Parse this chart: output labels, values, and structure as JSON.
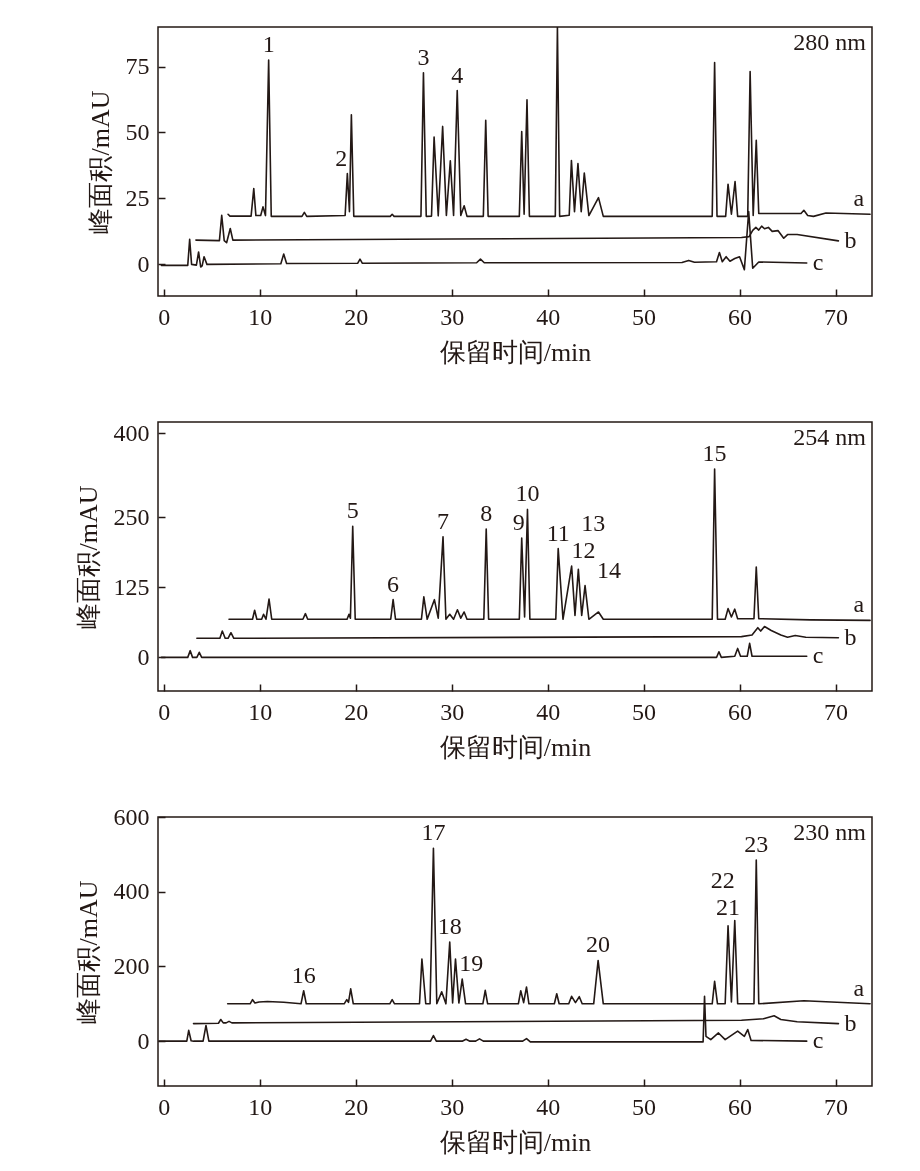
{
  "chart_data": [
    {
      "type": "line",
      "xlabel": "保留时间/min",
      "ylabel": "峰面积/mAU",
      "xlim": [
        -0.6,
        73.8
      ],
      "ylim": [
        -12,
        90
      ],
      "xticks": [
        0,
        10,
        20,
        30,
        40,
        50,
        60,
        70
      ],
      "yticks": [
        0,
        25,
        50,
        75
      ],
      "series": [
        {
          "name": "a",
          "color": "#231815",
          "x": [
            6.7,
            6.9,
            9.1,
            9.38,
            9.6,
            10.1,
            10.34,
            10.6,
            10.93,
            11.2,
            14.4,
            14.65,
            14.9,
            18.9,
            19.13,
            19.35,
            19.55,
            19.8,
            23.6,
            23.8,
            24.0,
            26.8,
            27.06,
            27.35,
            27.9,
            28.17,
            28.6,
            29.06,
            29.45,
            29.86,
            30.2,
            30.58,
            30.95,
            31.3,
            31.6,
            33.3,
            33.55,
            33.8,
            37.05,
            37.3,
            37.55,
            37.85,
            38.1,
            40.8,
            41.02,
            41.25,
            42.25,
            42.48,
            42.8,
            43.16,
            43.5,
            43.82,
            44.3,
            45.3,
            45.8,
            57.15,
            57.4,
            57.65,
            58.55,
            58.8,
            59.15,
            59.53,
            59.8,
            60.85,
            61.1,
            61.42,
            61.74,
            62.0,
            64.0,
            66.4,
            66.7,
            67.1,
            67.7,
            69.0,
            73.6
          ],
          "values": [
            19,
            18.3,
            18.3,
            28.7,
            18.5,
            18.5,
            21.8,
            18.5,
            77.5,
            18.2,
            18.2,
            19.7,
            18.2,
            18.5,
            34.4,
            20,
            56.7,
            18.2,
            18.2,
            19,
            18.2,
            18.2,
            72.6,
            18.2,
            18.3,
            48.3,
            18.4,
            52.3,
            18.5,
            39.3,
            18.5,
            65.9,
            18.5,
            22.2,
            18.2,
            18.2,
            54.6,
            18.2,
            18.2,
            50.4,
            19,
            62.4,
            18.2,
            18.2,
            90,
            18.2,
            18.6,
            39.4,
            20,
            38.2,
            20,
            34.6,
            18.5,
            25.3,
            18.2,
            18.2,
            76.5,
            18.2,
            18.2,
            30.4,
            19,
            31.4,
            18.2,
            18.2,
            73.1,
            18.5,
            47,
            19.3,
            19.3,
            19.3,
            20.5,
            18.5,
            18.2,
            19.5,
            19
          ]
        },
        {
          "name": "b",
          "color": "#231815",
          "x": [
            3.35,
            5.8,
            6.04,
            6.3,
            6.55,
            6.93,
            7.2,
            30,
            60.2,
            61.0,
            61.37,
            61.7,
            62.0,
            62.3,
            62.6,
            63.0,
            63.4,
            64.0,
            64.6,
            65.0,
            66.0,
            70.3
          ],
          "values": [
            9.2,
            9.0,
            18.6,
            9,
            8.2,
            13.6,
            9.2,
            9.6,
            10.2,
            10.5,
            12.9,
            14,
            13,
            14.5,
            13.5,
            14,
            12.5,
            12.8,
            9.9,
            11.3,
            11.3,
            8.9
          ]
        },
        {
          "name": "c",
          "color": "#231815",
          "x": [
            -0.24,
            2.5,
            2.7,
            2.9,
            3.4,
            3.63,
            3.85,
            4.0,
            4.2,
            4.5,
            12.2,
            12.5,
            12.8,
            20.2,
            20.45,
            20.7,
            32.6,
            33.0,
            33.4,
            54.0,
            54.7,
            55.3,
            57.6,
            57.9,
            58.2,
            58.6,
            59.0,
            59.5,
            60.0,
            60.5,
            60.95,
            61.37,
            62,
            67.0
          ],
          "values": [
            -0.4,
            -0.4,
            9.5,
            0,
            -0.3,
            4.7,
            -1,
            -0.6,
            2.9,
            0,
            0.2,
            3.9,
            0.3,
            0.4,
            2.0,
            0.4,
            0.6,
            2,
            0.6,
            0.7,
            1.5,
            0.8,
            1,
            4.5,
            1,
            2.9,
            1.2,
            2.2,
            2.9,
            -2,
            20,
            -1.5,
            0.9,
            0.5
          ]
        }
      ],
      "annotations": [
        "280 nm",
        {
          "text": "1",
          "x": 10.93,
          "y": 77.5
        },
        {
          "text": "2",
          "x": 19.13,
          "y": 34.4
        },
        {
          "text": "3",
          "x": 27.06,
          "y": 72.6
        },
        {
          "text": "4",
          "x": 30.58,
          "y": 65.9
        }
      ]
    },
    {
      "type": "line",
      "xlabel": "保留时间/min",
      "ylabel": "峰面积/mAU",
      "xlim": [
        -0.6,
        73.8
      ],
      "ylim": [
        -60,
        420
      ],
      "xticks": [
        0,
        10,
        20,
        30,
        40,
        50,
        60,
        70
      ],
      "yticks": [
        0,
        125,
        250,
        400
      ],
      "series": [
        {
          "name": "a",
          "color": "#231815",
          "x": [
            6.8,
            9.25,
            9.47,
            9.7,
            10.2,
            10.4,
            10.65,
            10.97,
            11.25,
            14.5,
            14.76,
            15.0,
            19.1,
            19.3,
            19.45,
            19.69,
            19.95,
            23.65,
            23.9,
            24.15,
            26.85,
            27.1,
            27.45,
            28.2,
            28.6,
            29.1,
            29.4,
            29.8,
            30.2,
            30.6,
            30.95,
            31.3,
            31.6,
            33.35,
            33.6,
            33.85,
            37.05,
            37.3,
            37.6,
            37.9,
            38.15,
            40.85,
            41.1,
            41.6,
            42.5,
            42.85,
            43.2,
            43.55,
            43.9,
            44.3,
            45.3,
            45.8,
            57.15,
            57.4,
            57.7,
            58.5,
            58.8,
            59.15,
            59.5,
            59.8,
            61.5,
            61.74,
            62.0,
            67.4,
            73.6
          ],
          "values": [
            68,
            68,
            84,
            68,
            68,
            77,
            68,
            104,
            68,
            68,
            78,
            68,
            68,
            77,
            70,
            234,
            68,
            68,
            103,
            68,
            68,
            108,
            68,
            103,
            70,
            215,
            68,
            77,
            68,
            85,
            70,
            81,
            68,
            68,
            229,
            68,
            68,
            213,
            72,
            264,
            68,
            68,
            194,
            68,
            163,
            75,
            157,
            75,
            128,
            68,
            81,
            68,
            68,
            336,
            68,
            68,
            87,
            72,
            86,
            69,
            69,
            161,
            69,
            67,
            66
          ]
        },
        {
          "name": "b",
          "color": "#231815",
          "x": [
            3.45,
            5.85,
            6.1,
            6.4,
            6.7,
            7.0,
            7.3,
            60.2,
            61.3,
            61.9,
            62.2,
            62.6,
            63.3,
            63.8,
            64.3,
            65.0,
            65.8,
            66.9,
            70.3
          ],
          "values": [
            34,
            34,
            47,
            34,
            34,
            44,
            34,
            37,
            40,
            53,
            47,
            55,
            48,
            44,
            40,
            36,
            39,
            36,
            35
          ]
        },
        {
          "name": "c",
          "color": "#231815",
          "x": [
            -0.24,
            2.5,
            2.76,
            3.0,
            3.45,
            3.7,
            3.95,
            57.6,
            57.85,
            58.1,
            59.5,
            59.8,
            60.1,
            60.8,
            61.05,
            61.3,
            67.0
          ],
          "values": [
            0,
            0,
            12,
            0,
            0,
            9,
            0,
            0,
            10,
            0,
            2,
            16,
            2,
            2,
            25,
            2,
            2
          ]
        }
      ],
      "annotations": [
        "254 nm",
        {
          "text": "5",
          "x": 19.69,
          "y": 234
        },
        {
          "text": "6",
          "x": 23.9,
          "y": 103
        },
        {
          "text": "7",
          "x": 29.1,
          "y": 215
        },
        {
          "text": "8",
          "x": 33.6,
          "y": 229
        },
        {
          "text": "9",
          "x": 37.3,
          "y": 213
        },
        {
          "text": "10",
          "x": 37.9,
          "y": 264
        },
        {
          "text": "11",
          "x": 41.1,
          "y": 194
        },
        {
          "text": "12",
          "x": 42.5,
          "y": 163
        },
        {
          "text": "13",
          "x": 43.2,
          "y": 157
        },
        {
          "text": "14",
          "x": 43.9,
          "y": 128
        },
        {
          "text": "15",
          "x": 57.4,
          "y": 336
        }
      ]
    },
    {
      "type": "line",
      "xlabel": "保留时间/min",
      "ylabel": "峰面积/mAU",
      "xlim": [
        -0.6,
        73.8
      ],
      "ylim": [
        -120,
        600
      ],
      "xticks": [
        0,
        10,
        20,
        30,
        40,
        50,
        60,
        70
      ],
      "yticks": [
        0,
        200,
        400,
        600
      ],
      "series": [
        {
          "name": "a",
          "color": "#231815",
          "x": [
            6.66,
            9.0,
            9.25,
            9.5,
            9.93,
            10.8,
            12.5,
            14.3,
            14.58,
            14.85,
            18.8,
            19.07,
            19.25,
            19.48,
            19.75,
            23.55,
            23.8,
            24.05,
            26.65,
            26.9,
            27.3,
            27.75,
            28.1,
            28.45,
            28.96,
            29.4,
            29.8,
            30.1,
            30.4,
            30.75,
            31.1,
            31.45,
            33.25,
            33.5,
            33.75,
            36.95,
            37.2,
            37.5,
            37.8,
            38.05,
            40.7,
            40.95,
            41.2,
            42.2,
            42.5,
            42.9,
            43.3,
            43.6,
            44.8,
            45.26,
            45.8,
            57.15,
            57.4,
            57.7,
            58.5,
            58.8,
            59.15,
            59.5,
            59.8,
            61.5,
            61.74,
            62.0,
            66.7,
            73.6
          ],
          "values": [
            100,
            100,
            111,
            102,
            105,
            106,
            104,
            100,
            135,
            100,
            100,
            111,
            104,
            140,
            100,
            100,
            111,
            100,
            100,
            220,
            100,
            100,
            516,
            100,
            132,
            100,
            265,
            102,
            220,
            102,
            166,
            100,
            100,
            136,
            100,
            100,
            135,
            103,
            145,
            100,
            100,
            127,
            100,
            100,
            120,
            103,
            119,
            100,
            100,
            216,
            100,
            100,
            160,
            100,
            100,
            309,
            105,
            323,
            100,
            100,
            485,
            100,
            108,
            100
          ]
        },
        {
          "name": "b",
          "color": "#231815",
          "x": [
            3.1,
            5.7,
            5.94,
            6.2,
            6.5,
            6.8,
            7.1,
            60.2,
            62.5,
            63.6,
            64.3,
            66.0,
            70.3
          ],
          "values": [
            47,
            48,
            58,
            49,
            49,
            53,
            49,
            56,
            60,
            68,
            58,
            52,
            47
          ]
        },
        {
          "name": "c",
          "color": "#231815",
          "x": [
            -0.5,
            2.4,
            2.6,
            2.85,
            3.1,
            4.1,
            4.4,
            4.7,
            27.8,
            28.1,
            28.4,
            31.1,
            31.5,
            31.9,
            32.5,
            32.9,
            33.3,
            37.4,
            37.8,
            38.2,
            56.2,
            56.35,
            56.5,
            57.0,
            57.8,
            58.5,
            59.8,
            60.5,
            60.85,
            61.2,
            67.0
          ],
          "values": [
            0,
            0,
            29,
            1,
            0,
            0,
            42,
            0,
            0,
            15,
            0,
            0,
            5,
            0,
            0,
            6,
            0,
            0,
            7,
            -2,
            -2,
            120,
            13,
            4,
            22,
            4,
            27,
            13,
            31,
            2,
            0
          ]
        }
      ],
      "annotations": [
        "230 nm",
        {
          "text": "16",
          "x": 14.58,
          "y": 135
        },
        {
          "text": "17",
          "x": 28.1,
          "y": 516
        },
        {
          "text": "18",
          "x": 29.8,
          "y": 265
        },
        {
          "text": "19",
          "x": 31.1,
          "y": 166
        },
        {
          "text": "20",
          "x": 45.26,
          "y": 216
        },
        {
          "text": "21",
          "x": 58.8,
          "y": 309
        },
        {
          "text": "22",
          "x": 59.5,
          "y": 323
        },
        {
          "text": "23",
          "x": 61.74,
          "y": 485
        }
      ]
    }
  ]
}
